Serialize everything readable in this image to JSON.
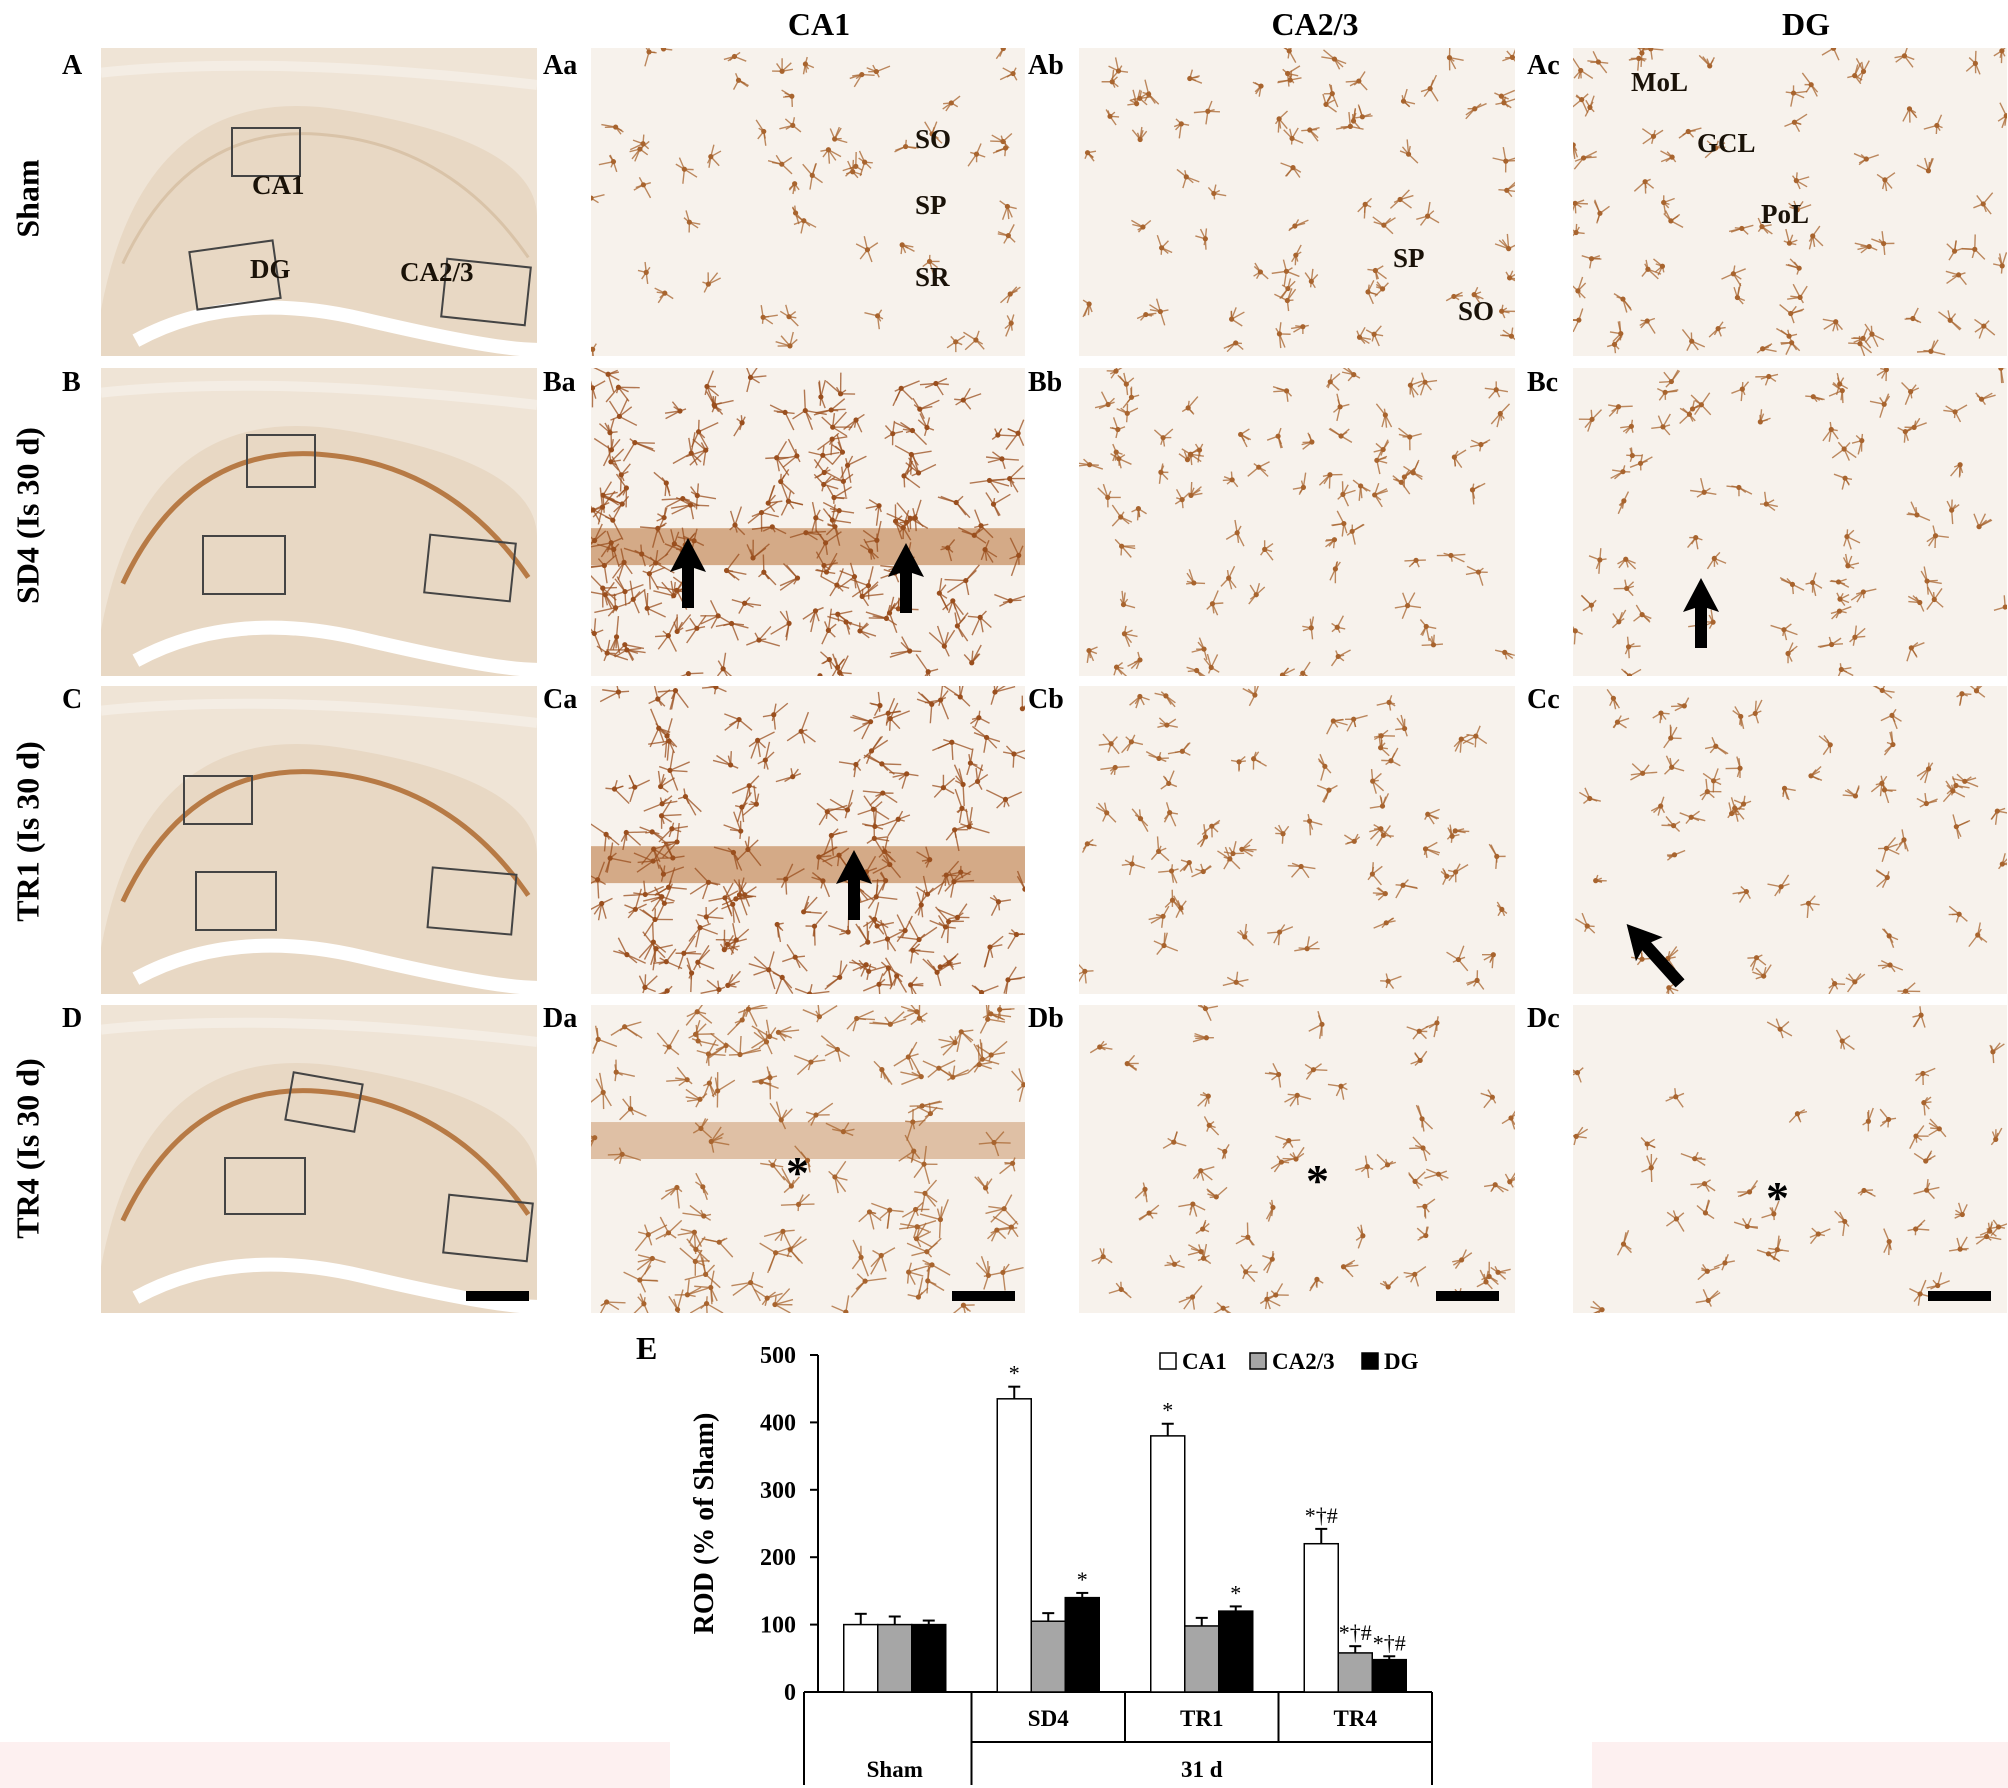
{
  "columns": {
    "ca1": "CA1",
    "ca23": "CA2/3",
    "dg": "DG"
  },
  "rows": {
    "sham": "Sham",
    "sd4": "SD4 (Is 30 d)",
    "tr1": "TR1 (Is 30 d)",
    "tr4": "TR4 (Is 30 d)"
  },
  "panel_labels": {
    "A": "A",
    "Aa": "Aa",
    "Ab": "Ab",
    "Ac": "Ac",
    "B": "B",
    "Ba": "Ba",
    "Bb": "Bb",
    "Bc": "Bc",
    "C": "C",
    "Ca": "Ca",
    "Cb": "Cb",
    "Cc": "Cc",
    "D": "D",
    "Da": "Da",
    "Db": "Db",
    "Dc": "Dc",
    "E": "E"
  },
  "overview_labels": {
    "ca1": "CA1",
    "dg": "DG",
    "ca23": "CA2/3"
  },
  "layer_labels": {
    "so": "SO",
    "sp": "SP",
    "sr": "SR",
    "sp2": "SP",
    "so2": "SO",
    "mol": "MoL",
    "gcl": "GCL",
    "pol": "PoL"
  },
  "stars": {
    "da": "*",
    "db": "*",
    "dc": "*"
  },
  "chart_data": {
    "type": "bar",
    "ylabel": "ROD (% of Sham)",
    "ylim": [
      0,
      500
    ],
    "yticks": [
      "0",
      "100",
      "200",
      "300",
      "400",
      "500"
    ],
    "categories": [
      "Sham",
      "SD4",
      "TR1",
      "TR4"
    ],
    "group_label": "31 d",
    "legend": [
      "CA1",
      "CA2/3",
      "DG"
    ],
    "legend_placement": "top-right",
    "series": [
      {
        "name": "CA1",
        "color": "#ffffff",
        "values": [
          100,
          435,
          380,
          220
        ],
        "errors": [
          16,
          18,
          18,
          22
        ]
      },
      {
        "name": "CA2/3",
        "color": "#a6a6a6",
        "values": [
          100,
          105,
          98,
          58
        ],
        "errors": [
          12,
          12,
          12,
          10
        ]
      },
      {
        "name": "DG",
        "color": "#000000",
        "values": [
          100,
          140,
          120,
          48
        ],
        "errors": [
          6,
          7,
          7,
          5
        ]
      }
    ],
    "annotations": [
      [
        "",
        "*",
        "*",
        "*†#"
      ],
      [
        "",
        "",
        "",
        "*†#"
      ],
      [
        "",
        "*",
        "*",
        "*†#"
      ]
    ]
  }
}
